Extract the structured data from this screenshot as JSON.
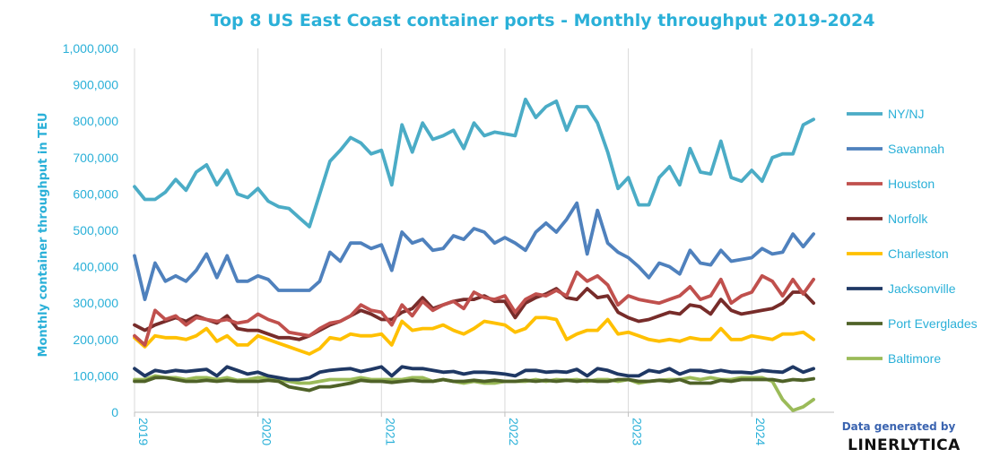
{
  "chart_data": {
    "type": "line",
    "title": "Top 8 US East Coast container ports - Monthly throughput 2019-2024",
    "ylabel": "Monthly container throughput in TEU",
    "xlabel": "",
    "ylim": [
      0,
      1000000
    ],
    "yticks": [
      "0",
      "100,000",
      "200,000",
      "300,000",
      "400,000",
      "500,000",
      "600,000",
      "700,000",
      "800,000",
      "900,000",
      "1,000,000"
    ],
    "xticks": [
      "2019",
      "2020",
      "2021",
      "2022",
      "2023",
      "2024"
    ],
    "x_start": "2019-01",
    "x_end": "2024-08",
    "grid": "vertical",
    "legend_position": "right",
    "series": [
      {
        "name": "NY/NJ",
        "color": "#4bacc6",
        "values": [
          620000,
          585000,
          585000,
          605000,
          640000,
          610000,
          660000,
          680000,
          625000,
          665000,
          600000,
          590000,
          615000,
          580000,
          565000,
          560000,
          535000,
          510000,
          600000,
          690000,
          720000,
          755000,
          740000,
          710000,
          720000,
          625000,
          790000,
          715000,
          795000,
          750000,
          760000,
          775000,
          725000,
          795000,
          760000,
          770000,
          765000,
          760000,
          860000,
          810000,
          840000,
          855000,
          775000,
          840000,
          840000,
          795000,
          715000,
          615000,
          645000,
          570000,
          570000,
          645000,
          675000,
          625000,
          725000,
          660000,
          655000,
          745000,
          645000,
          635000,
          665000,
          635000,
          700000,
          710000,
          710000,
          790000,
          805000
        ]
      },
      {
        "name": "Savannah",
        "color": "#4f81bd",
        "values": [
          430000,
          310000,
          410000,
          360000,
          375000,
          360000,
          390000,
          435000,
          370000,
          430000,
          360000,
          360000,
          375000,
          365000,
          335000,
          335000,
          335000,
          335000,
          360000,
          440000,
          415000,
          465000,
          465000,
          450000,
          460000,
          390000,
          495000,
          465000,
          475000,
          445000,
          450000,
          485000,
          475000,
          505000,
          495000,
          465000,
          480000,
          465000,
          445000,
          495000,
          520000,
          495000,
          530000,
          575000,
          435000,
          555000,
          465000,
          440000,
          425000,
          400000,
          370000,
          410000,
          400000,
          380000,
          445000,
          410000,
          405000,
          445000,
          415000,
          420000,
          425000,
          450000,
          435000,
          440000,
          490000,
          455000,
          490000
        ]
      },
      {
        "name": "Houston",
        "color": "#c0504d",
        "values": [
          210000,
          185000,
          280000,
          255000,
          265000,
          240000,
          260000,
          255000,
          250000,
          255000,
          245000,
          250000,
          270000,
          255000,
          245000,
          220000,
          215000,
          210000,
          230000,
          245000,
          250000,
          265000,
          295000,
          280000,
          275000,
          240000,
          295000,
          265000,
          305000,
          280000,
          295000,
          305000,
          285000,
          330000,
          315000,
          310000,
          320000,
          275000,
          310000,
          325000,
          320000,
          335000,
          320000,
          385000,
          360000,
          375000,
          350000,
          295000,
          320000,
          310000,
          305000,
          300000,
          310000,
          320000,
          345000,
          310000,
          320000,
          365000,
          300000,
          320000,
          330000,
          375000,
          360000,
          320000,
          365000,
          325000,
          365000
        ]
      },
      {
        "name": "Norfolk",
        "color": "#772c2a",
        "values": [
          240000,
          225000,
          240000,
          250000,
          260000,
          250000,
          265000,
          255000,
          245000,
          265000,
          230000,
          225000,
          225000,
          215000,
          205000,
          205000,
          200000,
          210000,
          225000,
          240000,
          250000,
          265000,
          280000,
          270000,
          255000,
          255000,
          275000,
          285000,
          315000,
          285000,
          295000,
          305000,
          310000,
          310000,
          320000,
          305000,
          305000,
          260000,
          300000,
          315000,
          325000,
          340000,
          315000,
          310000,
          340000,
          315000,
          320000,
          275000,
          260000,
          250000,
          255000,
          265000,
          275000,
          270000,
          295000,
          290000,
          270000,
          310000,
          280000,
          270000,
          275000,
          280000,
          285000,
          300000,
          330000,
          330000,
          300000
        ]
      },
      {
        "name": "Charleston",
        "color": "#ffc000",
        "values": [
          205000,
          180000,
          210000,
          205000,
          205000,
          200000,
          210000,
          230000,
          195000,
          210000,
          185000,
          185000,
          210000,
          200000,
          190000,
          180000,
          170000,
          160000,
          175000,
          205000,
          200000,
          215000,
          210000,
          210000,
          215000,
          185000,
          250000,
          225000,
          230000,
          230000,
          240000,
          225000,
          215000,
          230000,
          250000,
          245000,
          240000,
          220000,
          230000,
          260000,
          260000,
          255000,
          200000,
          215000,
          225000,
          225000,
          255000,
          215000,
          220000,
          210000,
          200000,
          195000,
          200000,
          195000,
          205000,
          200000,
          200000,
          230000,
          200000,
          200000,
          210000,
          205000,
          200000,
          215000,
          215000,
          220000,
          200000
        ]
      },
      {
        "name": "Jacksonville",
        "color": "#1f3864",
        "values": [
          120000,
          100000,
          115000,
          110000,
          115000,
          112000,
          115000,
          118000,
          100000,
          125000,
          115000,
          105000,
          110000,
          100000,
          95000,
          90000,
          90000,
          95000,
          110000,
          115000,
          118000,
          120000,
          112000,
          118000,
          125000,
          100000,
          125000,
          120000,
          120000,
          115000,
          110000,
          112000,
          105000,
          110000,
          110000,
          108000,
          105000,
          100000,
          115000,
          115000,
          110000,
          112000,
          110000,
          118000,
          100000,
          120000,
          115000,
          105000,
          100000,
          100000,
          115000,
          110000,
          120000,
          105000,
          115000,
          115000,
          110000,
          115000,
          110000,
          110000,
          108000,
          115000,
          112000,
          110000,
          125000,
          110000,
          120000
        ]
      },
      {
        "name": "Port Everglades",
        "color": "#4f6228",
        "values": [
          85000,
          85000,
          95000,
          95000,
          90000,
          85000,
          85000,
          88000,
          85000,
          88000,
          85000,
          85000,
          85000,
          88000,
          85000,
          70000,
          65000,
          60000,
          70000,
          70000,
          75000,
          80000,
          88000,
          85000,
          85000,
          82000,
          85000,
          88000,
          85000,
          85000,
          90000,
          85000,
          85000,
          88000,
          85000,
          88000,
          85000,
          85000,
          88000,
          85000,
          88000,
          85000,
          88000,
          85000,
          88000,
          85000,
          85000,
          90000,
          90000,
          85000,
          85000,
          88000,
          85000,
          90000,
          80000,
          80000,
          80000,
          88000,
          85000,
          90000,
          90000,
          90000,
          90000,
          85000,
          90000,
          88000,
          92000
        ]
      },
      {
        "name": "Baltimore",
        "color": "#9bbb59",
        "values": [
          90000,
          90000,
          100000,
          95000,
          95000,
          90000,
          95000,
          95000,
          90000,
          95000,
          88000,
          90000,
          95000,
          95000,
          90000,
          85000,
          80000,
          80000,
          85000,
          90000,
          90000,
          90000,
          95000,
          90000,
          90000,
          90000,
          90000,
          95000,
          95000,
          85000,
          90000,
          85000,
          80000,
          85000,
          80000,
          80000,
          85000,
          85000,
          85000,
          90000,
          85000,
          90000,
          88000,
          90000,
          85000,
          90000,
          90000,
          85000,
          90000,
          80000,
          85000,
          88000,
          90000,
          90000,
          95000,
          90000,
          95000,
          90000,
          90000,
          95000,
          95000,
          95000,
          85000,
          35000,
          5000,
          15000,
          35000
        ]
      }
    ]
  },
  "credit": {
    "line1": "Data generated by",
    "line2": "LINERLYTICA"
  }
}
